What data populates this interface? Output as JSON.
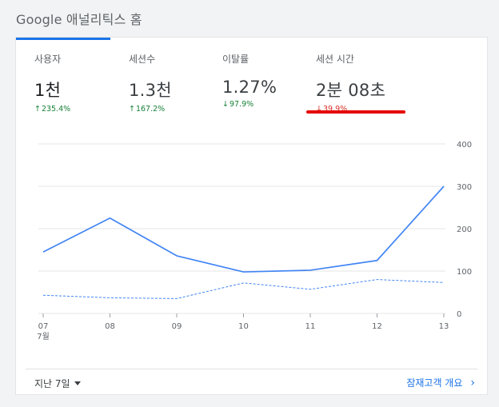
{
  "page": {
    "title": "Google 애널리틱스 홈"
  },
  "metrics": [
    {
      "label": "사용자",
      "value": "1천",
      "change": "235.4%",
      "direction": "up"
    },
    {
      "label": "세션수",
      "value": "1.3천",
      "change": "167.2%",
      "direction": "up"
    },
    {
      "label": "이탈률",
      "value": "1.27%",
      "change": "97.9%",
      "direction": "down"
    },
    {
      "label": "세션 시간",
      "value": "2분 08초",
      "change": "39.9%",
      "direction": "down"
    }
  ],
  "arrows": {
    "up": "↑",
    "down": "↓"
  },
  "colors": {
    "accent": "#1a73e8",
    "line": "#4285f4",
    "positive": "#188038",
    "negative": "#d93025",
    "highlight": "#e60000"
  },
  "chart_data": {
    "type": "line",
    "categories": [
      "07",
      "08",
      "09",
      "10",
      "11",
      "12",
      "13"
    ],
    "x_sublabel": "7월",
    "ylim": [
      0,
      400
    ],
    "yticks": [
      0,
      100,
      200,
      300,
      400
    ],
    "grid": true,
    "series": [
      {
        "style": "solid",
        "values": [
          145,
          225,
          136,
          98,
          102,
          125,
          300
        ]
      },
      {
        "style": "dashed",
        "values": [
          43,
          37,
          35,
          72,
          57,
          80,
          73
        ]
      }
    ]
  },
  "footer": {
    "date_range": "지난 7일",
    "link": "잠재고객 개요"
  }
}
